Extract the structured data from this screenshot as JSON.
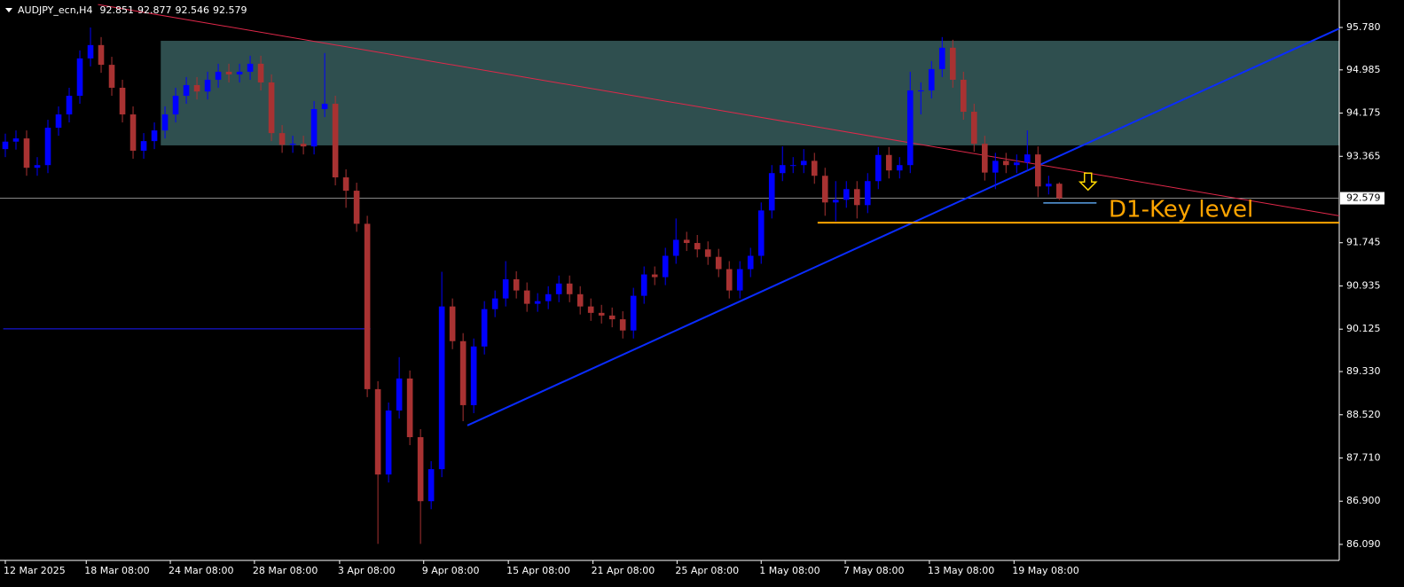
{
  "chart_data": {
    "type": "candlestick",
    "symbol": "AUDJPY_ecn,H4",
    "bull_color": "#0000ff",
    "bear_color": "#a83232",
    "open": [
      93.5,
      93.64,
      93.7,
      93.15,
      93.2,
      93.9,
      94.15,
      94.5,
      95.2,
      95.45,
      95.08,
      94.65,
      94.15,
      93.47,
      93.65,
      93.85,
      94.15,
      94.5,
      94.7,
      94.58,
      94.8,
      94.95,
      94.9,
      94.95,
      95.1,
      94.75,
      93.8,
      93.58,
      93.6,
      93.55,
      94.25,
      94.35,
      92.97,
      92.72,
      92.1,
      89.0,
      87.4,
      88.6,
      89.2,
      88.1,
      86.9,
      87.5,
      90.55,
      89.9,
      88.7,
      89.8,
      90.5,
      90.7,
      91.06,
      90.85,
      90.6,
      90.65,
      90.78,
      90.98,
      90.78,
      90.55,
      90.43,
      90.38,
      90.31,
      90.1,
      90.75,
      91.15,
      91.1,
      91.5,
      91.8,
      91.74,
      91.62,
      91.48,
      91.25,
      90.85,
      91.25,
      91.5,
      92.35,
      93.05,
      93.2,
      93.2,
      93.28,
      93.0,
      92.5,
      92.55,
      92.75,
      92.45,
      92.9,
      93.39,
      93.1,
      93.2,
      94.6,
      94.6,
      95.0,
      95.4,
      94.8,
      94.2,
      93.6,
      93.06,
      93.28,
      93.2,
      93.25,
      93.4,
      92.8,
      92.851
    ],
    "high": [
      93.79,
      93.85,
      93.85,
      93.35,
      94.05,
      94.3,
      94.65,
      95.35,
      95.78,
      95.6,
      95.23,
      94.8,
      94.3,
      93.8,
      94.0,
      94.3,
      94.65,
      94.85,
      94.85,
      94.95,
      95.1,
      95.1,
      95.1,
      95.25,
      95.25,
      94.9,
      93.95,
      93.75,
      93.75,
      94.4,
      95.3,
      94.5,
      93.12,
      92.87,
      92.25,
      89.15,
      88.75,
      89.6,
      89.35,
      88.25,
      87.65,
      91.2,
      90.7,
      90.05,
      89.95,
      90.65,
      90.85,
      91.4,
      91.21,
      91.0,
      90.8,
      90.93,
      91.13,
      91.13,
      90.93,
      90.7,
      90.58,
      90.53,
      90.46,
      90.9,
      91.3,
      91.3,
      91.65,
      92.2,
      91.95,
      91.89,
      91.77,
      91.63,
      91.4,
      91.4,
      91.65,
      92.5,
      93.2,
      93.55,
      93.35,
      93.5,
      93.43,
      93.15,
      92.9,
      92.9,
      92.9,
      93.05,
      93.54,
      93.54,
      93.35,
      94.95,
      94.75,
      95.15,
      95.6,
      95.55,
      94.95,
      94.35,
      93.75,
      93.43,
      93.43,
      93.4,
      93.85,
      93.55,
      93.0,
      92.877
    ],
    "low": [
      93.35,
      93.49,
      93.0,
      93.0,
      93.05,
      93.75,
      94.0,
      94.35,
      95.05,
      94.93,
      94.5,
      94.0,
      93.32,
      93.32,
      93.5,
      93.7,
      94.0,
      94.35,
      94.43,
      94.43,
      94.65,
      94.75,
      94.75,
      94.8,
      94.6,
      93.65,
      93.43,
      93.43,
      93.4,
      93.4,
      94.1,
      92.82,
      92.4,
      91.95,
      88.85,
      86.1,
      87.25,
      88.45,
      87.95,
      86.1,
      86.75,
      87.35,
      89.75,
      88.4,
      88.55,
      89.65,
      90.35,
      90.55,
      90.7,
      90.45,
      90.45,
      90.5,
      90.63,
      90.63,
      90.4,
      90.28,
      90.23,
      90.16,
      89.95,
      89.95,
      90.6,
      90.95,
      90.95,
      91.35,
      91.59,
      91.47,
      91.33,
      91.1,
      90.7,
      90.7,
      91.1,
      91.35,
      92.2,
      92.9,
      93.05,
      93.05,
      92.85,
      92.25,
      92.15,
      92.4,
      92.2,
      92.3,
      92.75,
      92.95,
      92.95,
      93.05,
      94.15,
      94.45,
      94.85,
      94.65,
      94.05,
      93.45,
      92.91,
      92.75,
      93.05,
      93.05,
      93.1,
      92.6,
      92.65,
      92.546
    ],
    "close": [
      93.64,
      93.7,
      93.15,
      93.2,
      93.9,
      94.15,
      94.5,
      95.2,
      95.45,
      95.08,
      94.65,
      94.15,
      93.47,
      93.65,
      93.85,
      94.15,
      94.5,
      94.7,
      94.58,
      94.8,
      94.95,
      94.9,
      94.95,
      95.1,
      94.75,
      93.8,
      93.58,
      93.6,
      93.55,
      94.25,
      94.35,
      92.97,
      92.72,
      92.1,
      89.0,
      87.4,
      88.6,
      89.2,
      88.1,
      86.9,
      87.5,
      90.55,
      89.9,
      88.7,
      89.8,
      90.5,
      90.7,
      91.06,
      90.85,
      90.6,
      90.65,
      90.78,
      90.98,
      90.78,
      90.55,
      90.43,
      90.38,
      90.31,
      90.1,
      90.75,
      91.15,
      91.1,
      91.5,
      91.8,
      91.74,
      91.62,
      91.48,
      91.25,
      90.85,
      91.25,
      91.5,
      92.35,
      93.05,
      93.2,
      93.2,
      93.28,
      93.0,
      92.5,
      92.55,
      92.75,
      92.45,
      92.9,
      93.39,
      93.1,
      93.2,
      94.6,
      94.6,
      95.0,
      95.4,
      94.8,
      94.2,
      93.6,
      93.06,
      93.28,
      93.2,
      93.25,
      93.4,
      92.8,
      92.851,
      92.579
    ],
    "xlim": [
      -0.5,
      125.3
    ],
    "ylim": [
      85.79,
      96.295
    ],
    "xticks": [
      {
        "value": 0,
        "label": "12 Mar 2025"
      },
      {
        "value": 7.6,
        "label": "18 Mar 08:00"
      },
      {
        "value": 15.5,
        "label": "24 Mar 08:00"
      },
      {
        "value": 23.4,
        "label": "28 Mar 08:00"
      },
      {
        "value": 31.4,
        "label": "3 Apr 08:00"
      },
      {
        "value": 39.3,
        "label": "9 Apr 08:00"
      },
      {
        "value": 47.25,
        "label": "15 Apr 08:00"
      },
      {
        "value": 55.2,
        "label": "21 Apr 08:00"
      },
      {
        "value": 63.1,
        "label": "25 Apr 08:00"
      },
      {
        "value": 71,
        "label": "1 May 08:00"
      },
      {
        "value": 78.9,
        "label": "7 May 08:00"
      },
      {
        "value": 86.8,
        "label": "13 May 08:00"
      },
      {
        "value": 94.75,
        "label": "19 May 08:00"
      }
    ],
    "yticks": [
      {
        "value": 95.78,
        "label": "95.780"
      },
      94.985,
      94.175,
      93.365,
      91.745,
      90.935,
      90.125,
      {
        "value": 89.33,
        "label": "89.330"
      },
      {
        "value": 88.52,
        "label": "88.520"
      },
      {
        "value": 87.71,
        "label": "87.710"
      },
      {
        "value": 86.9,
        "label": "86.900"
      },
      {
        "value": 86.09,
        "label": "86.090"
      }
    ],
    "zone": {
      "x": [
        14.6,
        125.3
      ],
      "y": [
        93.57,
        95.53
      ],
      "color": "#2f4f4f"
    },
    "trendlines": [
      {
        "from": [
          8.7,
          96.21
        ],
        "to": [
          125.3,
          92.25
        ],
        "color": "#e0284a",
        "width": 1
      },
      {
        "from": [
          43.4,
          88.32
        ],
        "to": [
          125.3,
          95.76
        ],
        "color": "#0a2cff",
        "width": 2
      },
      {
        "from": [
          -0.2,
          90.13
        ],
        "to": [
          34.3,
          90.13
        ],
        "color": "#1a1aff",
        "width": 1
      },
      {
        "from": [
          97.5,
          92.49
        ],
        "to": [
          102.5,
          92.49
        ],
        "color": "#5aa0e6",
        "width": 1.5
      }
    ],
    "key_level": {
      "label": "D1-Key level",
      "from": 76.3,
      "to": 125.3,
      "price": 92.12,
      "color": "#ffa500"
    },
    "arrow": {
      "x": 101.7,
      "price": 92.85,
      "color": "#ffd700"
    }
  }
}
